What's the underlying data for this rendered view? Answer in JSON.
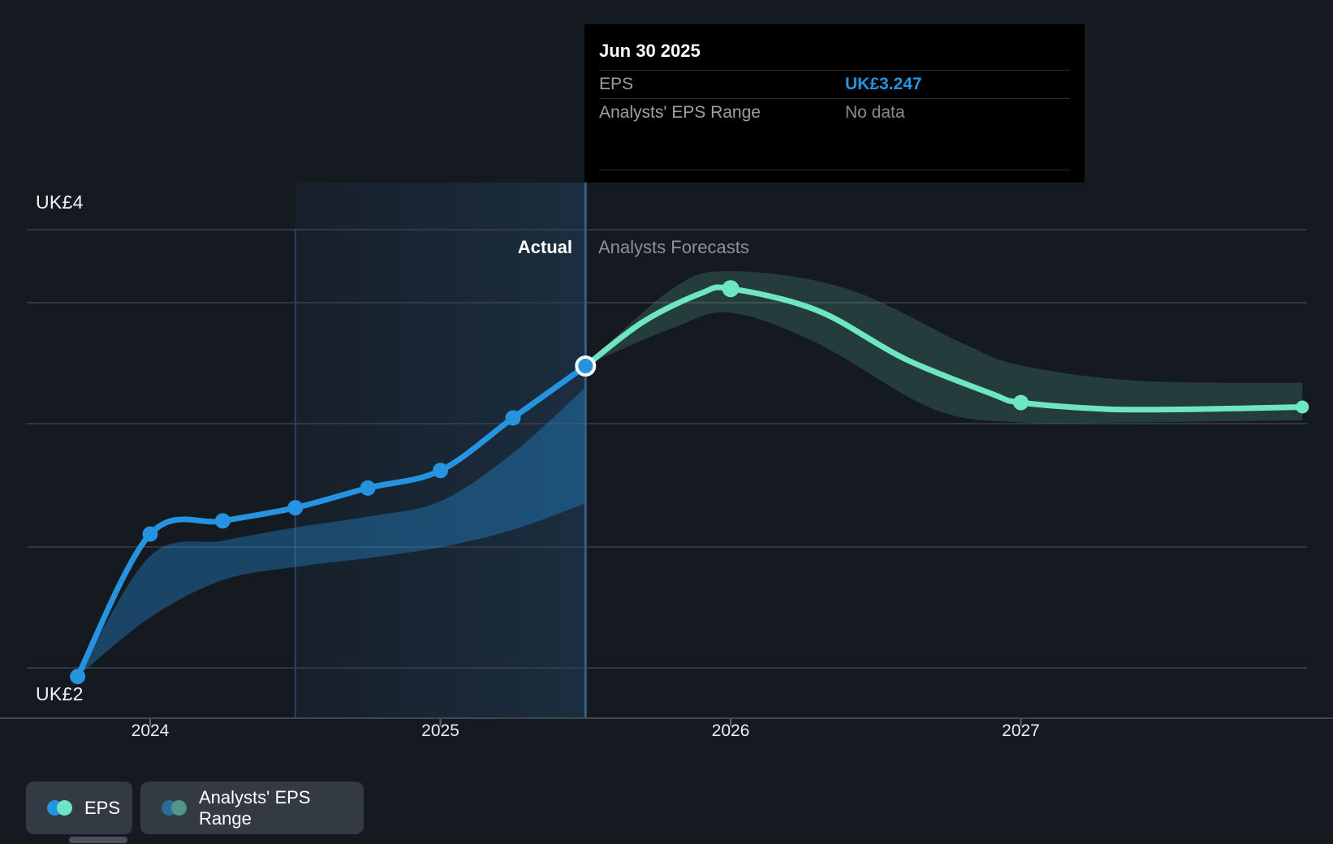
{
  "colors": {
    "accent_blue": "#2593e0",
    "accent_teal": "#6ee7c1",
    "background": "#151a21",
    "tooltip_bg": "#000000",
    "legend_pill_bg": "#333a43"
  },
  "tooltip": {
    "title": "Jun 30 2025",
    "rows": [
      {
        "label": "EPS",
        "value": "UK£3.247",
        "style": "eps"
      },
      {
        "label": "Analysts' EPS Range",
        "value": "No data",
        "style": "muted"
      }
    ]
  },
  "divider_labels": {
    "actual": "Actual",
    "forecast": "Analysts Forecasts"
  },
  "y_axis_labels": {
    "top": "UK£4",
    "bottom": "UK£2"
  },
  "legend": [
    {
      "label": "EPS",
      "dot_colors": [
        "#2593e0",
        "#6fe3c4"
      ]
    },
    {
      "label": "Analysts' EPS Range",
      "dot_colors": [
        "#2d6c97",
        "#54958b"
      ]
    }
  ],
  "chart_data": {
    "type": "line",
    "title": "EPS — actual vs analysts forecasts",
    "currency_prefix": "UK£",
    "x_axis": {
      "tick_labels": [
        "2024",
        "2025",
        "2026",
        "2027"
      ],
      "tick_years": [
        2024,
        2025,
        2026,
        2027
      ],
      "range_years": [
        2023.57,
        2027.97
      ]
    },
    "y_axis": {
      "top": {
        "text": "UK£4",
        "value": 4
      },
      "bottom": {
        "text": "UK£2",
        "value": 2
      },
      "grid": true
    },
    "divider_year": 2025.5,
    "highlight_region": {
      "from_year": 2024.5,
      "to_year": 2025.5
    },
    "tooltip_point": {
      "date": "Jun 30 2025",
      "eps_value": 3.247,
      "year": 2025.5,
      "analysts_range": "No data"
    },
    "series": [
      {
        "name": "EPS",
        "kind": "actual",
        "color": "#2593e0",
        "points": [
          [
            2023.75,
            1.83
          ],
          [
            2024.0,
            2.48
          ],
          [
            2024.25,
            2.54
          ],
          [
            2024.5,
            2.6
          ],
          [
            2024.75,
            2.69
          ],
          [
            2025.0,
            2.77
          ],
          [
            2025.25,
            3.01
          ],
          [
            2025.5,
            3.247
          ]
        ]
      },
      {
        "name": "EPS Analysts Forecast",
        "kind": "forecast",
        "color": "#6ee7c1",
        "points": [
          [
            2025.5,
            3.247
          ],
          [
            2025.7,
            3.45
          ],
          [
            2025.9,
            3.58
          ],
          [
            2026.0,
            3.6
          ],
          [
            2026.3,
            3.5
          ],
          [
            2026.6,
            3.28
          ],
          [
            2026.9,
            3.12
          ],
          [
            2027.0,
            3.08
          ],
          [
            2027.3,
            3.05
          ],
          [
            2027.6,
            3.05
          ],
          [
            2027.97,
            3.06
          ]
        ],
        "marker_years": [
          2026.0,
          2027.0,
          2027.97
        ]
      },
      {
        "name": "Analysts' EPS Range (past)",
        "kind": "band",
        "color": "rgba(37,147,224,0.36)",
        "top": [
          [
            2023.75,
            1.83
          ],
          [
            2024.0,
            2.38
          ],
          [
            2024.25,
            2.45
          ],
          [
            2024.5,
            2.51
          ],
          [
            2024.75,
            2.56
          ],
          [
            2025.0,
            2.63
          ],
          [
            2025.25,
            2.85
          ],
          [
            2025.5,
            3.15
          ]
        ],
        "bottom": [
          [
            2023.75,
            1.83
          ],
          [
            2024.0,
            2.1
          ],
          [
            2024.25,
            2.27
          ],
          [
            2024.5,
            2.33
          ],
          [
            2024.75,
            2.37
          ],
          [
            2025.0,
            2.42
          ],
          [
            2025.25,
            2.5
          ],
          [
            2025.5,
            2.62
          ]
        ]
      },
      {
        "name": "Analysts' EPS Range (forecast)",
        "kind": "band",
        "color": "rgba(110,231,197,0.17)",
        "top": [
          [
            2025.5,
            3.25
          ],
          [
            2025.8,
            3.6
          ],
          [
            2026.0,
            3.68
          ],
          [
            2026.4,
            3.6
          ],
          [
            2026.8,
            3.35
          ],
          [
            2027.0,
            3.25
          ],
          [
            2027.4,
            3.18
          ],
          [
            2027.97,
            3.17
          ]
        ],
        "bottom": [
          [
            2025.5,
            3.25
          ],
          [
            2025.8,
            3.42
          ],
          [
            2026.0,
            3.49
          ],
          [
            2026.3,
            3.35
          ],
          [
            2026.7,
            3.05
          ],
          [
            2027.0,
            2.99
          ],
          [
            2027.4,
            2.99
          ],
          [
            2027.97,
            3.0
          ]
        ]
      }
    ]
  }
}
